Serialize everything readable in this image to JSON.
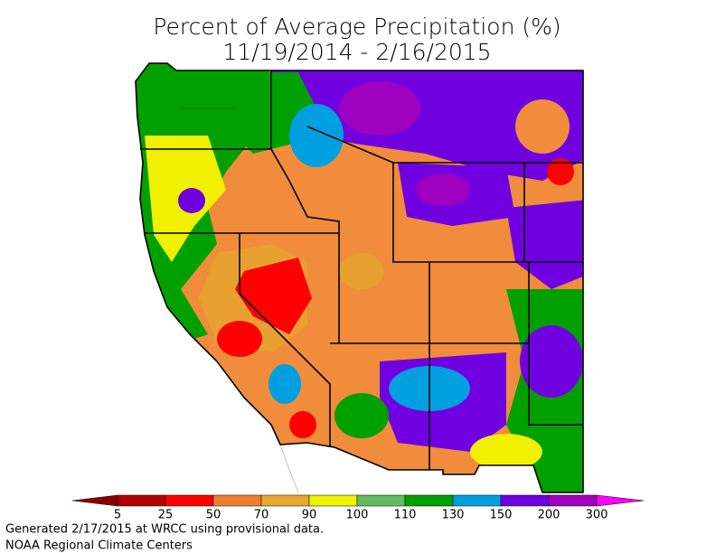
{
  "header": {
    "title": "Percent of Average Precipitation (%)",
    "period": "11/19/2014 - 2/16/2015"
  },
  "legend": {
    "ticks": [
      5,
      25,
      50,
      70,
      90,
      100,
      110,
      130,
      150,
      200,
      300
    ],
    "colors": [
      "#8b0000",
      "#b40000",
      "#ff0000",
      "#f08030",
      "#e8a830",
      "#f0f000",
      "#60c060",
      "#00a000",
      "#00a0e0",
      "#7000e0",
      "#a000c0",
      "#ff00ff"
    ]
  },
  "footer": {
    "line1": "Generated 2/17/2015 at WRCC using provisional data.",
    "line2": "NOAA Regional Climate Centers"
  }
}
